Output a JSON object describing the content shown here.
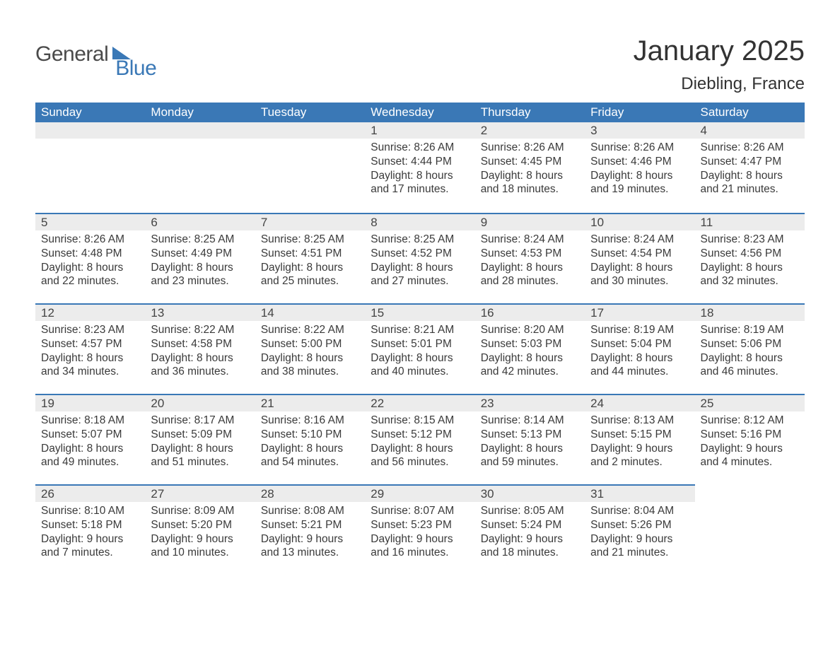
{
  "logo": {
    "text1": "General",
    "text2": "Blue"
  },
  "title": "January 2025",
  "location": "Diebling, France",
  "colors": {
    "header_bg": "#3a78b6",
    "header_text": "#ffffff",
    "daybar_bg": "#ececec",
    "daybar_border": "#3a78b6",
    "body_text": "#3a3a3a",
    "page_bg": "#ffffff"
  },
  "weekdays": [
    "Sunday",
    "Monday",
    "Tuesday",
    "Wednesday",
    "Thursday",
    "Friday",
    "Saturday"
  ],
  "first_weekday_index": 3,
  "days": [
    {
      "n": 1,
      "sunrise": "8:26 AM",
      "sunset": "4:44 PM",
      "daylight": "8 hours and 17 minutes."
    },
    {
      "n": 2,
      "sunrise": "8:26 AM",
      "sunset": "4:45 PM",
      "daylight": "8 hours and 18 minutes."
    },
    {
      "n": 3,
      "sunrise": "8:26 AM",
      "sunset": "4:46 PM",
      "daylight": "8 hours and 19 minutes."
    },
    {
      "n": 4,
      "sunrise": "8:26 AM",
      "sunset": "4:47 PM",
      "daylight": "8 hours and 21 minutes."
    },
    {
      "n": 5,
      "sunrise": "8:26 AM",
      "sunset": "4:48 PM",
      "daylight": "8 hours and 22 minutes."
    },
    {
      "n": 6,
      "sunrise": "8:25 AM",
      "sunset": "4:49 PM",
      "daylight": "8 hours and 23 minutes."
    },
    {
      "n": 7,
      "sunrise": "8:25 AM",
      "sunset": "4:51 PM",
      "daylight": "8 hours and 25 minutes."
    },
    {
      "n": 8,
      "sunrise": "8:25 AM",
      "sunset": "4:52 PM",
      "daylight": "8 hours and 27 minutes."
    },
    {
      "n": 9,
      "sunrise": "8:24 AM",
      "sunset": "4:53 PM",
      "daylight": "8 hours and 28 minutes."
    },
    {
      "n": 10,
      "sunrise": "8:24 AM",
      "sunset": "4:54 PM",
      "daylight": "8 hours and 30 minutes."
    },
    {
      "n": 11,
      "sunrise": "8:23 AM",
      "sunset": "4:56 PM",
      "daylight": "8 hours and 32 minutes."
    },
    {
      "n": 12,
      "sunrise": "8:23 AM",
      "sunset": "4:57 PM",
      "daylight": "8 hours and 34 minutes."
    },
    {
      "n": 13,
      "sunrise": "8:22 AM",
      "sunset": "4:58 PM",
      "daylight": "8 hours and 36 minutes."
    },
    {
      "n": 14,
      "sunrise": "8:22 AM",
      "sunset": "5:00 PM",
      "daylight": "8 hours and 38 minutes."
    },
    {
      "n": 15,
      "sunrise": "8:21 AM",
      "sunset": "5:01 PM",
      "daylight": "8 hours and 40 minutes."
    },
    {
      "n": 16,
      "sunrise": "8:20 AM",
      "sunset": "5:03 PM",
      "daylight": "8 hours and 42 minutes."
    },
    {
      "n": 17,
      "sunrise": "8:19 AM",
      "sunset": "5:04 PM",
      "daylight": "8 hours and 44 minutes."
    },
    {
      "n": 18,
      "sunrise": "8:19 AM",
      "sunset": "5:06 PM",
      "daylight": "8 hours and 46 minutes."
    },
    {
      "n": 19,
      "sunrise": "8:18 AM",
      "sunset": "5:07 PM",
      "daylight": "8 hours and 49 minutes."
    },
    {
      "n": 20,
      "sunrise": "8:17 AM",
      "sunset": "5:09 PM",
      "daylight": "8 hours and 51 minutes."
    },
    {
      "n": 21,
      "sunrise": "8:16 AM",
      "sunset": "5:10 PM",
      "daylight": "8 hours and 54 minutes."
    },
    {
      "n": 22,
      "sunrise": "8:15 AM",
      "sunset": "5:12 PM",
      "daylight": "8 hours and 56 minutes."
    },
    {
      "n": 23,
      "sunrise": "8:14 AM",
      "sunset": "5:13 PM",
      "daylight": "8 hours and 59 minutes."
    },
    {
      "n": 24,
      "sunrise": "8:13 AM",
      "sunset": "5:15 PM",
      "daylight": "9 hours and 2 minutes."
    },
    {
      "n": 25,
      "sunrise": "8:12 AM",
      "sunset": "5:16 PM",
      "daylight": "9 hours and 4 minutes."
    },
    {
      "n": 26,
      "sunrise": "8:10 AM",
      "sunset": "5:18 PM",
      "daylight": "9 hours and 7 minutes."
    },
    {
      "n": 27,
      "sunrise": "8:09 AM",
      "sunset": "5:20 PM",
      "daylight": "9 hours and 10 minutes."
    },
    {
      "n": 28,
      "sunrise": "8:08 AM",
      "sunset": "5:21 PM",
      "daylight": "9 hours and 13 minutes."
    },
    {
      "n": 29,
      "sunrise": "8:07 AM",
      "sunset": "5:23 PM",
      "daylight": "9 hours and 16 minutes."
    },
    {
      "n": 30,
      "sunrise": "8:05 AM",
      "sunset": "5:24 PM",
      "daylight": "9 hours and 18 minutes."
    },
    {
      "n": 31,
      "sunrise": "8:04 AM",
      "sunset": "5:26 PM",
      "daylight": "9 hours and 21 minutes."
    }
  ],
  "labels": {
    "sunrise": "Sunrise: ",
    "sunset": "Sunset: ",
    "daylight": "Daylight: "
  }
}
